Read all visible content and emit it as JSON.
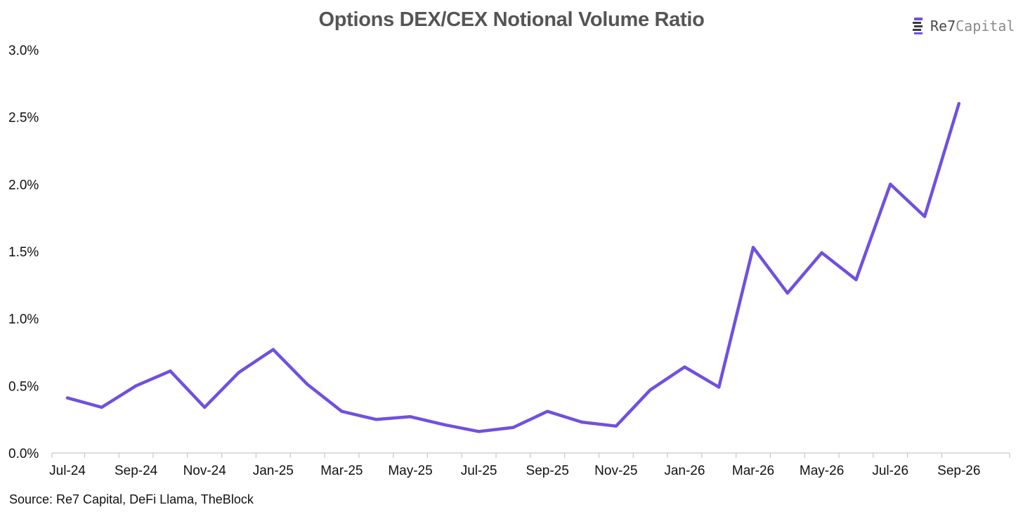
{
  "title": "Options DEX/CEX Notional Volume Ratio",
  "logo": {
    "brand": "Re7",
    "suffix": "Capital",
    "icon": "re7-logo-icon"
  },
  "source": "Source: Re7 Capital, DeFi Llama, TheBlock",
  "colors": {
    "line": "#7050e0",
    "axis": "#c8c8c8",
    "title": "#555555"
  },
  "chart_data": {
    "type": "line",
    "title": "Options DEX/CEX Notional Volume Ratio",
    "xlabel": "",
    "ylabel": "",
    "x_tick_labels": [
      "Jul-24",
      "Sep-24",
      "Nov-24",
      "Jan-25",
      "Mar-25",
      "May-25",
      "Jul-25",
      "Sep-25",
      "Nov-25",
      "Jan-26",
      "Mar-26",
      "May-26",
      "Jul-26",
      "Sep-26"
    ],
    "y_tick_labels": [
      "0.0%",
      "0.5%",
      "1.0%",
      "1.5%",
      "2.0%",
      "2.5%",
      "3.0%"
    ],
    "ylim": [
      0,
      3.0
    ],
    "grid": false,
    "series": [
      {
        "x": [
          "Jul-24",
          "Aug-24",
          "Sep-24",
          "Oct-24",
          "Nov-24",
          "Dec-24",
          "Jan-25",
          "Feb-25",
          "Mar-25",
          "Apr-25",
          "May-25",
          "Jun-25",
          "Jul-25",
          "Aug-25",
          "Sep-25",
          "Oct-25",
          "Nov-25",
          "Dec-25",
          "Jan-26",
          "Feb-26",
          "Mar-26",
          "Apr-26",
          "May-26",
          "Jun-26",
          "Jul-26",
          "Aug-26",
          "Sep-26"
        ],
        "values": [
          0.41,
          0.34,
          0.5,
          0.61,
          0.34,
          0.6,
          0.77,
          0.51,
          0.31,
          0.25,
          0.27,
          0.21,
          0.16,
          0.19,
          0.31,
          0.23,
          0.2,
          0.47,
          0.64,
          0.49,
          1.53,
          1.19,
          1.49,
          1.29,
          2.0,
          1.76,
          2.6
        ]
      }
    ]
  }
}
